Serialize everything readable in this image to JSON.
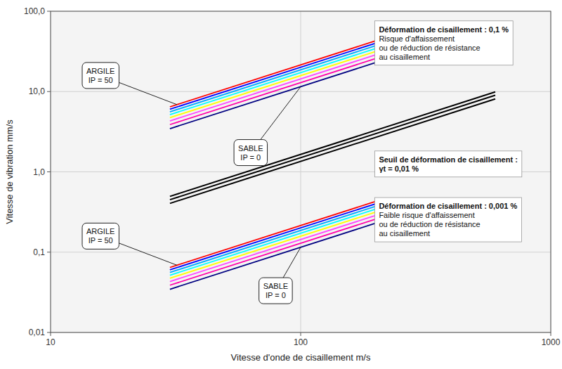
{
  "chart_data": {
    "type": "line",
    "xlabel": "Vitesse d'onde de cisaillement m/s",
    "ylabel": "Vitesse de vibration mm/s",
    "log": true,
    "grid": true,
    "xlim": [
      10,
      1000
    ],
    "ylim": [
      0.01,
      100.0
    ],
    "xticks": [
      10,
      100,
      1000
    ],
    "yticks": [
      {
        "value": 0.01,
        "label": "0,01"
      },
      {
        "value": 0.1,
        "label": "0,1"
      },
      {
        "value": 1.0,
        "label": "1,0"
      },
      {
        "value": 10.0,
        "label": "10,0"
      },
      {
        "value": 100.0,
        "label": "100,0"
      }
    ],
    "series": [
      {
        "color": "#FF0000",
        "x": [
          30,
          200
        ],
        "values": [
          6.45,
          43
        ]
      },
      {
        "color": "#0000FF",
        "x": [
          30,
          200
        ],
        "values": [
          6.021428571428571,
          40.14285714285714
        ]
      },
      {
        "color": "#00AAFF",
        "x": [
          30,
          200
        ],
        "values": [
          5.592857142857143,
          37.28571428571429
        ]
      },
      {
        "color": "#00FFFF",
        "x": [
          30,
          200
        ],
        "values": [
          5.164285714285714,
          34.42857142857143
        ]
      },
      {
        "color": "#FFFF00",
        "x": [
          30,
          200
        ],
        "values": [
          4.735714285714286,
          31.57142857142857
        ]
      },
      {
        "color": "#FF44FF",
        "x": [
          30,
          200
        ],
        "values": [
          4.307142857142857,
          28.71428571428571
        ]
      },
      {
        "color": "#FF00AA",
        "x": [
          30,
          200
        ],
        "values": [
          3.878571428571429,
          25.85714285714286
        ]
      },
      {
        "color": "#000080",
        "x": [
          30,
          200
        ],
        "values": [
          3.45,
          23
        ]
      },
      {
        "color": "#FF0000",
        "x": [
          30,
          200
        ],
        "values": [
          0.0645,
          0.43
        ]
      },
      {
        "color": "#0000FF",
        "x": [
          30,
          200
        ],
        "values": [
          0.06021428571428571,
          0.4014285714285714
        ]
      },
      {
        "color": "#00AAFF",
        "x": [
          30,
          200
        ],
        "values": [
          0.05592857142857143,
          0.3728571428571429
        ]
      },
      {
        "color": "#00FFFF",
        "x": [
          30,
          200
        ],
        "values": [
          0.05164285714285714,
          0.3442857142857143
        ]
      },
      {
        "color": "#FFFF00",
        "x": [
          30,
          200
        ],
        "values": [
          0.04735714285714286,
          0.3157142857142857
        ]
      },
      {
        "color": "#FF44FF",
        "x": [
          30,
          200
        ],
        "values": [
          0.04307142857142857,
          0.2871428571428571
        ]
      },
      {
        "color": "#FF00AA",
        "x": [
          30,
          200
        ],
        "values": [
          0.03878571428571429,
          0.2585714285714286
        ]
      },
      {
        "color": "#000080",
        "x": [
          30,
          200
        ],
        "values": [
          0.0345,
          0.23
        ]
      },
      {
        "color": "#000000",
        "x": [
          30,
          600
        ],
        "values": [
          0.405,
          8.1
        ]
      },
      {
        "color": "#000000",
        "x": [
          30,
          600
        ],
        "values": [
          0.45,
          9
        ]
      },
      {
        "color": "#000000",
        "x": [
          30,
          600
        ],
        "values": [
          0.495,
          9.9
        ]
      }
    ],
    "annotations": [
      {
        "text": "ARGILE\nIP = 50",
        "x": 32,
        "y": 6.88
      },
      {
        "text": "SABLE\nIP = 0",
        "x": 100,
        "y": 11.5
      },
      {
        "text": "ARGILE\nIP = 50",
        "x": 32,
        "y": 0.0688
      },
      {
        "text": "SABLE\nIP = 0",
        "x": 100,
        "y": 0.115
      },
      {
        "text": "Déformation de cisaillement : 0,1 %\nRisque d'affaissement\nou de réduction de résistance\nau cisaillement"
      },
      {
        "text": "Seuil de déformation de cisaillement :\nγt = 0,01 %"
      },
      {
        "text": "Déformation de cisaillement : 0,001 %\nFaible risque d'affaissement\nou de réduction de résistance\nau cisaillement"
      }
    ]
  }
}
